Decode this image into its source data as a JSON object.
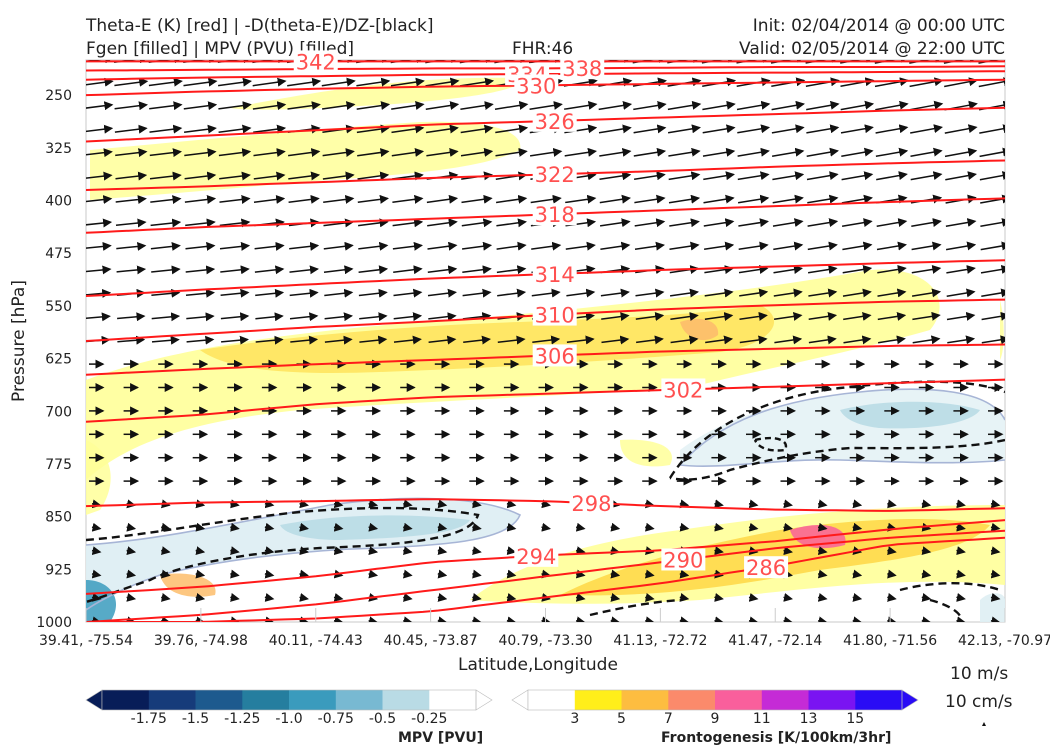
{
  "header": {
    "title_line1": "Theta-E (K) [red] | -D(theta-E)/DZ-[black]",
    "title_line2": "Fgen [filled] | MPV (PVU) [filled]",
    "fhr": "FHR:46",
    "init": "Init: 02/04/2014 @ 00:00 UTC",
    "valid": "Valid: 02/05/2014 @ 22:00 UTC"
  },
  "chart_data": {
    "type": "cross-section",
    "xlabel": "Latitude,Longitude",
    "ylabel": "Pressure [hPa]",
    "x_ticks": [
      "39.41, -75.54",
      "39.76, -74.98",
      "40.11, -74.43",
      "40.45, -73.87",
      "40.79, -73.30",
      "41.13, -72.72",
      "41.47, -72.14",
      "41.80, -71.56",
      "42.13, -70.97"
    ],
    "y_ticks": [
      250,
      325,
      400,
      475,
      550,
      625,
      700,
      775,
      850,
      925,
      1000
    ],
    "ylim": [
      1000,
      200
    ],
    "theta_e_contours": [
      {
        "level": 342,
        "label": "342",
        "label_x": 0.25,
        "y": [
          202,
          202,
          202,
          202,
          202,
          202,
          202,
          202,
          202
        ]
      },
      {
        "level": 338,
        "label": "338",
        "label_x": 0.54,
        "y": [
          215,
          214,
          213,
          212,
          212,
          211,
          210,
          210,
          209
        ]
      },
      {
        "level": 334,
        "label": "334",
        "label_x": 0.48,
        "y": [
          228,
          225,
          223,
          221,
          220,
          219,
          218,
          217,
          216
        ]
      },
      {
        "level": 330,
        "label": "330",
        "label_x": 0.49,
        "y": [
          250,
          245,
          241,
          238,
          236,
          234,
          232,
          230,
          228
        ]
      },
      {
        "level": 326,
        "label": "326",
        "label_x": 0.51,
        "y": [
          316,
          308,
          300,
          292,
          287,
          282,
          277,
          272,
          268
        ]
      },
      {
        "level": 322,
        "label": "322",
        "label_x": 0.51,
        "y": [
          385,
          380,
          374,
          368,
          363,
          358,
          352,
          347,
          343
        ]
      },
      {
        "level": 318,
        "label": "318",
        "label_x": 0.51,
        "y": [
          446,
          438,
          432,
          426,
          420,
          414,
          408,
          402,
          397
        ]
      },
      {
        "level": 314,
        "label": "314",
        "label_x": 0.51,
        "y": [
          536,
          527,
          519,
          511,
          505,
          499,
          494,
          489,
          485
        ]
      },
      {
        "level": 310,
        "label": "310",
        "label_x": 0.51,
        "y": [
          600,
          590,
          580,
          572,
          563,
          555,
          549,
          544,
          541
        ]
      },
      {
        "level": 306,
        "label": "306",
        "label_x": 0.51,
        "y": [
          648,
          640,
          633,
          627,
          621,
          615,
          611,
          607,
          605
        ]
      },
      {
        "level": 302,
        "label": "302",
        "label_x": 0.65,
        "y": [
          715,
          705,
          690,
          680,
          675,
          670,
          665,
          660,
          655
        ]
      },
      {
        "level": 298,
        "label": "298",
        "label_x": 0.55,
        "y": [
          835,
          830,
          828,
          825,
          828,
          835,
          840,
          842,
          838
        ]
      },
      {
        "level": 294,
        "label": "294",
        "label_x": 0.49,
        "y": [
          960,
          950,
          935,
          915,
          905,
          898,
          885,
          868,
          855
        ]
      },
      {
        "level": 290,
        "label": "290",
        "label_x": 0.65,
        "y": [
          1000,
          990,
          975,
          955,
          935,
          915,
          895,
          880,
          870
        ]
      },
      {
        "level": 286,
        "label": "286",
        "label_x": 0.74,
        "y": [
          1000,
          1000,
          995,
          985,
          965,
          945,
          920,
          890,
          880
        ]
      }
    ],
    "mpv_colorbar": {
      "label": "MPV [PVU]",
      "ticks": [
        "-1.75",
        "-1.5",
        "-1.25",
        "-1.0",
        "-0.75",
        "-0.5",
        "-0.25"
      ],
      "colors": [
        "#081d58",
        "#163b7a",
        "#1d5a8e",
        "#257e9f",
        "#3a9bbd",
        "#78b9d2",
        "#b9dbe5",
        "#ffffff"
      ]
    },
    "fgen_colorbar": {
      "label": "Frontogenesis [K/100km/3hr]",
      "ticks": [
        "3",
        "5",
        "7",
        "9",
        "11",
        "13",
        "15"
      ],
      "colors": [
        "#ffffff",
        "#ffee1a",
        "#fdbd40",
        "#fb8a6b",
        "#f95f9c",
        "#c52bd6",
        "#7a14f2",
        "#2a0cf5"
      ]
    },
    "reference_vector": {
      "label1": "10 m/s",
      "label2": "10 cm/s"
    }
  }
}
